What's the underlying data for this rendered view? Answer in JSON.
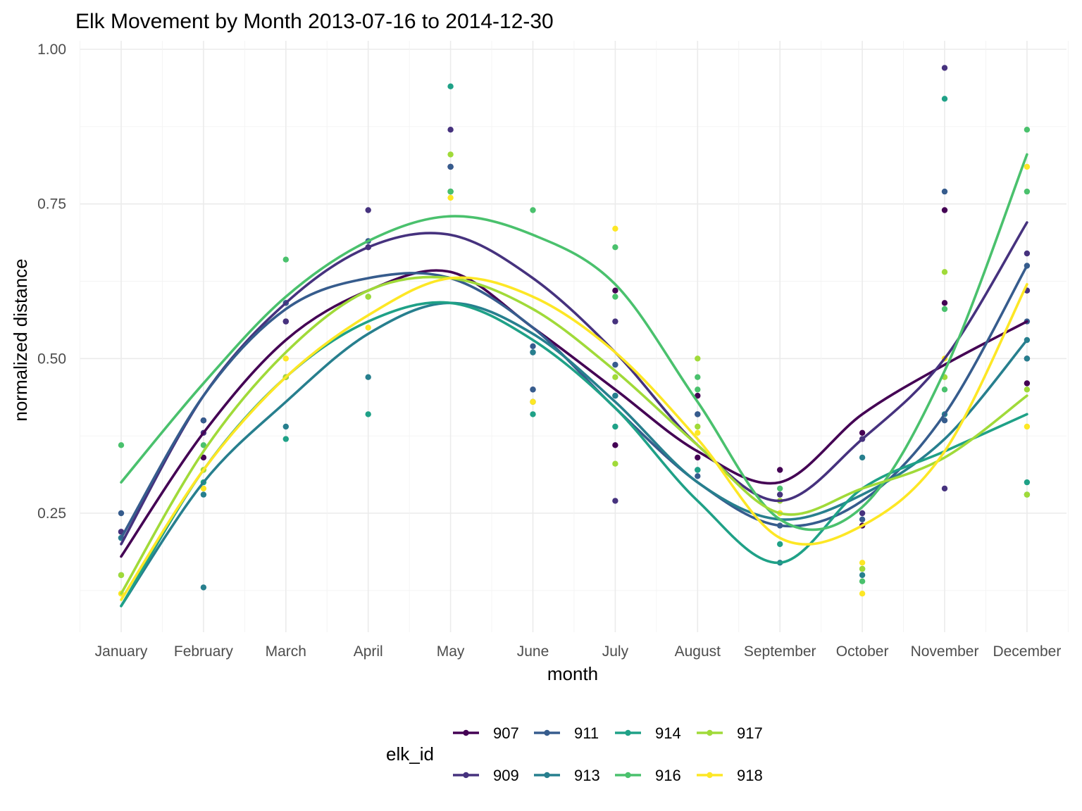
{
  "chart_data": {
    "type": "scatter",
    "title": "Elk Movement by Month 2013-07-16 to 2014-12-30",
    "xlabel": "month",
    "ylabel": "normalized distance",
    "categories": [
      "January",
      "February",
      "March",
      "April",
      "May",
      "June",
      "July",
      "August",
      "September",
      "October",
      "November",
      "December"
    ],
    "ylim": [
      0.05,
      1.0
    ],
    "yticks": [
      0.25,
      0.5,
      0.75,
      1.0
    ],
    "ytick_labels": [
      "0.25",
      "0.50",
      "0.75",
      "1.00"
    ],
    "grid": true,
    "legend": {
      "title": "elk_id",
      "position": "bottom"
    },
    "series": [
      {
        "name": "907",
        "color": "#440154",
        "points": [
          [
            1,
            0.22
          ],
          [
            2,
            0.34
          ],
          [
            2,
            0.4
          ],
          [
            3,
            0.47
          ],
          [
            3,
            0.56
          ],
          [
            4,
            0.68
          ],
          [
            5,
            0.81
          ],
          [
            6,
            0.43
          ],
          [
            7,
            0.36
          ],
          [
            7,
            0.61
          ],
          [
            8,
            0.34
          ],
          [
            8,
            0.44
          ],
          [
            9,
            0.32
          ],
          [
            10,
            0.38
          ],
          [
            10,
            0.23
          ],
          [
            11,
            0.74
          ],
          [
            11,
            0.59
          ],
          [
            12,
            0.46
          ],
          [
            12,
            0.61
          ],
          [
            12,
            0.5
          ]
        ],
        "trend": [
          0.18,
          0.38,
          0.53,
          0.61,
          0.64,
          0.55,
          0.45,
          0.35,
          0.3,
          0.41,
          0.49,
          0.56
        ]
      },
      {
        "name": "909",
        "color": "#46327e",
        "points": [
          [
            1,
            0.22
          ],
          [
            2,
            0.4
          ],
          [
            2,
            0.38
          ],
          [
            3,
            0.59
          ],
          [
            3,
            0.56
          ],
          [
            4,
            0.74
          ],
          [
            4,
            0.68
          ],
          [
            5,
            0.87
          ],
          [
            5,
            0.81
          ],
          [
            6,
            0.51
          ],
          [
            6,
            0.45
          ],
          [
            7,
            0.56
          ],
          [
            7,
            0.27
          ],
          [
            8,
            0.41
          ],
          [
            9,
            0.28
          ],
          [
            10,
            0.25
          ],
          [
            10,
            0.37
          ],
          [
            11,
            0.97
          ],
          [
            11,
            0.29
          ],
          [
            12,
            0.67
          ],
          [
            12,
            0.61
          ]
        ],
        "trend": [
          0.2,
          0.44,
          0.59,
          0.68,
          0.7,
          0.63,
          0.51,
          0.36,
          0.27,
          0.37,
          0.5,
          0.72
        ]
      },
      {
        "name": "911",
        "color": "#365c8d",
        "points": [
          [
            1,
            0.25
          ],
          [
            1,
            0.21
          ],
          [
            2,
            0.4
          ],
          [
            3,
            0.59
          ],
          [
            4,
            0.69
          ],
          [
            5,
            0.81
          ],
          [
            5,
            0.77
          ],
          [
            6,
            0.52
          ],
          [
            6,
            0.45
          ],
          [
            7,
            0.44
          ],
          [
            7,
            0.49
          ],
          [
            8,
            0.41
          ],
          [
            8,
            0.31
          ],
          [
            9,
            0.23
          ],
          [
            10,
            0.24
          ],
          [
            11,
            0.77
          ],
          [
            11,
            0.4
          ],
          [
            12,
            0.65
          ],
          [
            12,
            0.56
          ]
        ],
        "trend": [
          0.21,
          0.44,
          0.58,
          0.63,
          0.63,
          0.55,
          0.42,
          0.3,
          0.23,
          0.27,
          0.41,
          0.65
        ]
      },
      {
        "name": "913",
        "color": "#277f8e",
        "points": [
          [
            1,
            0.21
          ],
          [
            2,
            0.13
          ],
          [
            2,
            0.28
          ],
          [
            3,
            0.39
          ],
          [
            4,
            0.47
          ],
          [
            5,
            0.77
          ],
          [
            6,
            0.51
          ],
          [
            7,
            0.44
          ],
          [
            8,
            0.32
          ],
          [
            9,
            0.17
          ],
          [
            10,
            0.34
          ],
          [
            10,
            0.15
          ],
          [
            11,
            0.41
          ],
          [
            12,
            0.53
          ],
          [
            12,
            0.5
          ]
        ],
        "trend": [
          0.1,
          0.3,
          0.43,
          0.54,
          0.59,
          0.54,
          0.43,
          0.3,
          0.24,
          0.28,
          0.37,
          0.53
        ]
      },
      {
        "name": "914",
        "color": "#1fa187",
        "points": [
          [
            1,
            0.15
          ],
          [
            2,
            0.3
          ],
          [
            3,
            0.37
          ],
          [
            4,
            0.41
          ],
          [
            5,
            0.94
          ],
          [
            6,
            0.41
          ],
          [
            7,
            0.39
          ],
          [
            8,
            0.32
          ],
          [
            9,
            0.2
          ],
          [
            10,
            0.16
          ],
          [
            11,
            0.92
          ],
          [
            12,
            0.3
          ],
          [
            12,
            0.28
          ]
        ],
        "trend": [
          0.1,
          0.32,
          0.47,
          0.56,
          0.59,
          0.53,
          0.42,
          0.27,
          0.17,
          0.29,
          0.35,
          0.41
        ]
      },
      {
        "name": "916",
        "color": "#4ac16d",
        "points": [
          [
            1,
            0.36
          ],
          [
            2,
            0.36
          ],
          [
            3,
            0.66
          ],
          [
            4,
            0.6
          ],
          [
            5,
            0.77
          ],
          [
            6,
            0.74
          ],
          [
            7,
            0.68
          ],
          [
            7,
            0.6
          ],
          [
            8,
            0.47
          ],
          [
            8,
            0.45
          ],
          [
            9,
            0.29
          ],
          [
            10,
            0.14
          ],
          [
            11,
            0.58
          ],
          [
            11,
            0.45
          ],
          [
            12,
            0.87
          ],
          [
            12,
            0.77
          ]
        ],
        "trend": [
          0.3,
          0.46,
          0.6,
          0.69,
          0.73,
          0.7,
          0.62,
          0.43,
          0.24,
          0.26,
          0.48,
          0.83
        ]
      },
      {
        "name": "917",
        "color": "#a0da39",
        "points": [
          [
            1,
            0.15
          ],
          [
            2,
            0.32
          ],
          [
            3,
            0.47
          ],
          [
            4,
            0.6
          ],
          [
            5,
            0.83
          ],
          [
            6,
            0.43
          ],
          [
            7,
            0.33
          ],
          [
            7,
            0.47
          ],
          [
            8,
            0.5
          ],
          [
            8,
            0.39
          ],
          [
            9,
            0.27
          ],
          [
            10,
            0.16
          ],
          [
            11,
            0.64
          ],
          [
            11,
            0.47
          ],
          [
            12,
            0.45
          ],
          [
            12,
            0.28
          ]
        ],
        "trend": [
          0.12,
          0.35,
          0.51,
          0.61,
          0.63,
          0.58,
          0.48,
          0.36,
          0.25,
          0.29,
          0.34,
          0.44
        ]
      },
      {
        "name": "918",
        "color": "#fde725",
        "points": [
          [
            1,
            0.12
          ],
          [
            2,
            0.29
          ],
          [
            3,
            0.5
          ],
          [
            4,
            0.55
          ],
          [
            5,
            0.76
          ],
          [
            6,
            0.43
          ],
          [
            7,
            0.71
          ],
          [
            8,
            0.38
          ],
          [
            9,
            0.25
          ],
          [
            10,
            0.12
          ],
          [
            10,
            0.17
          ],
          [
            11,
            0.5
          ],
          [
            12,
            0.81
          ],
          [
            12,
            0.39
          ]
        ],
        "trend": [
          0.11,
          0.32,
          0.47,
          0.57,
          0.63,
          0.6,
          0.51,
          0.37,
          0.21,
          0.23,
          0.35,
          0.62
        ]
      }
    ]
  }
}
